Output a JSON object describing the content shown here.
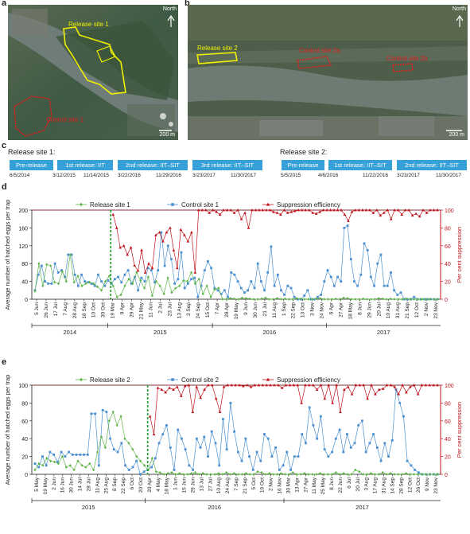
{
  "panel_a": {
    "label": "a",
    "north": "North",
    "site_label": "Release site 1",
    "control_label": "Control site 1",
    "scale": "200 m"
  },
  "panel_b": {
    "label": "b",
    "north": "North",
    "site_label": "Release site 2",
    "control_a": "Control site 2a",
    "control_b": "Control site 2b",
    "scale": "200 m"
  },
  "panel_c": {
    "label": "c",
    "site1": {
      "title": "Release site 1:",
      "boxes": [
        "Pre-release",
        "1st release: IIT",
        "2nd release: IIT–SIT",
        "3rd release: IIT–SIT"
      ],
      "dates": [
        "6/5/2014",
        "3/12/2015",
        "11/14/2015",
        "3/22/2016",
        "11/29/2016",
        "3/23/2017",
        "11/30/2017"
      ]
    },
    "site2": {
      "title": "Release site 2:",
      "boxes": [
        "Pre-release",
        "1st release: IIT–SIT",
        "2nd release: IIT–SIT"
      ],
      "dates": [
        "5/5/2015",
        "4/6/2016",
        "11/22/2016",
        "3/23/2017",
        "11/30/2017"
      ]
    }
  },
  "chart_data": [
    {
      "panel": "d",
      "type": "line",
      "ylabel": "Average number of hatched eggs per trap",
      "y2label": "Per cent suppression",
      "ylim": [
        0,
        200
      ],
      "y2lim": [
        0,
        100
      ],
      "yticks": [
        0,
        40,
        80,
        120,
        160,
        200
      ],
      "y2ticks": [
        0,
        20,
        40,
        60,
        80,
        100
      ],
      "legend": [
        "Release site 1",
        "Control site 1",
        "Suppression efficiency"
      ],
      "colors": {
        "release": "#5fb548",
        "control": "#4a90d0",
        "suppression": "#c0141c",
        "divider": "#1aa02a"
      },
      "xticklabels": [
        "5 Jun",
        "26 Jun",
        "17 Jul",
        "7 Aug",
        "28 Aug",
        "18 Sep",
        "10 Oct",
        "30 Oct",
        "19 Mar",
        "9 Apr",
        "29 Apr",
        "21 May",
        "11 Jun",
        "2 Jul",
        "23 Jul",
        "13 Aug",
        "3 Sep",
        "24 Sep",
        "15 Oct",
        "7 Apr",
        "28 Apr",
        "19 May",
        "9 Jun",
        "30 Jun",
        "21 Jul",
        "11 Aug",
        "1 Sep",
        "22 Sep",
        "13 Oct",
        "3 Nov",
        "24 Nov",
        "6 Apr",
        "27 Apr",
        "18 May",
        "8 Jun",
        "29 Jun",
        "20 Jul",
        "10 Aug",
        "31 Aug",
        "21 Sep",
        "12 Oct",
        "2 Nov",
        "23 Nov"
      ],
      "years": [
        {
          "label": "2014",
          "from": 0,
          "to": 8
        },
        {
          "label": "2015",
          "from": 8,
          "to": 19
        },
        {
          "label": "2016",
          "from": 19,
          "to": 31
        },
        {
          "label": "2017",
          "from": 31,
          "to": 43
        }
      ],
      "divider_at": 7.8,
      "release": [
        18,
        80,
        30,
        78,
        75,
        38,
        35,
        62,
        40,
        100,
        38,
        52,
        30,
        35,
        38,
        35,
        28,
        20,
        40,
        52,
        30,
        5,
        10,
        30,
        45,
        35,
        60,
        42,
        25,
        50,
        8,
        40,
        30,
        12,
        48,
        15,
        25,
        30,
        42,
        40,
        60,
        35,
        45,
        12,
        30,
        5,
        22,
        25,
        0,
        0,
        2,
        1,
        0,
        3,
        2,
        1,
        0,
        0,
        1,
        3,
        0,
        0,
        2,
        0,
        1,
        0,
        0,
        2,
        1,
        0,
        0,
        0,
        1,
        2,
        0,
        0,
        0,
        1,
        0,
        3,
        2,
        0,
        0,
        0,
        1,
        0,
        0,
        0,
        2,
        1,
        0,
        1,
        0,
        0,
        0,
        1,
        0,
        0,
        0,
        0,
        0,
        0,
        0,
        0
      ],
      "control": [
        20,
        55,
        75,
        40,
        35,
        35,
        80,
        60,
        65,
        50,
        100,
        100,
        55,
        30,
        55,
        40,
        38,
        35,
        30,
        55,
        40,
        30,
        42,
        35,
        45,
        50,
        38,
        55,
        65,
        35,
        50,
        20,
        48,
        40,
        70,
        65,
        38,
        65,
        150,
        75,
        120,
        90,
        35,
        45,
        105,
        25,
        35,
        45,
        48,
        5,
        30,
        65,
        85,
        70,
        25,
        20,
        12,
        20,
        5,
        60,
        55,
        40,
        25,
        15,
        20,
        40,
        25,
        80,
        40,
        20,
        60,
        118,
        30,
        55,
        20,
        10,
        30,
        25,
        5,
        0,
        0,
        8,
        20,
        0,
        0,
        5,
        10,
        40,
        65,
        50,
        30,
        50,
        40,
        160,
        165,
        90,
        40,
        30,
        55,
        125,
        110,
        50,
        30,
        80,
        100,
        30,
        30,
        60,
        20,
        10,
        15,
        0,
        0,
        0,
        5,
        0,
        0,
        0,
        0,
        0,
        0,
        0
      ],
      "suppression": [
        95,
        80,
        58,
        60,
        50,
        58,
        38,
        32,
        55,
        30,
        40,
        35,
        72,
        75,
        65,
        75,
        80,
        55,
        35,
        78,
        72,
        65,
        75,
        30,
        100,
        100,
        100,
        97,
        100,
        98,
        95,
        100,
        100,
        100,
        97,
        100,
        90,
        97,
        80,
        100,
        100,
        100,
        100,
        100,
        100,
        98,
        97,
        95,
        100,
        97,
        98,
        99,
        100,
        100,
        100,
        100,
        97,
        96,
        98,
        100,
        100,
        100,
        100,
        100,
        100,
        95,
        88,
        98,
        100,
        100,
        100,
        100,
        100,
        97,
        100,
        94,
        97,
        100,
        90,
        100,
        100,
        95,
        100,
        100,
        94,
        96,
        93,
        100,
        97,
        100,
        100,
        100
      ]
    },
    {
      "panel": "e",
      "type": "line",
      "ylabel": "Average number of hatched eggs per trap",
      "y2label": "Per cent suppression",
      "ylim": [
        0,
        100
      ],
      "y2lim": [
        0,
        100
      ],
      "yticks": [
        0,
        20,
        40,
        60,
        80,
        100
      ],
      "y2ticks": [
        0,
        20,
        40,
        60,
        80,
        100
      ],
      "legend": [
        "Release site 2",
        "Control site 2",
        "Suppression efficiency"
      ],
      "colors": {
        "release": "#5fb548",
        "control": "#4a90d0",
        "suppression": "#c0141c",
        "divider": "#1aa02a"
      },
      "xticklabels": [
        "5 May",
        "19 May",
        "2 Jun",
        "16 Jun",
        "30 Jun",
        "14 Jul",
        "28 Jul",
        "11 Aug",
        "25 Aug",
        "8 Sep",
        "22 Sep",
        "6 Oct",
        "20 Oct",
        "20 Apr",
        "4 May",
        "18 May",
        "1 Jun",
        "15 Jun",
        "29 Jun",
        "13 Jul",
        "27 Jul",
        "10 Aug",
        "24 Aug",
        "7 Sep",
        "21 Sep",
        "5 Oct",
        "19 Oct",
        "2 Nov",
        "16 Nov",
        "30 Mar",
        "13 Apr",
        "27 Apr",
        "11 May",
        "25 May",
        "8 Jun",
        "22 Jun",
        "6 Jul",
        "20 Jul",
        "3 Aug",
        "17 Aug",
        "31 Aug",
        "14 Sep",
        "28 Sep",
        "12 Oct",
        "26 Oct",
        "9 Nov",
        "23 Nov"
      ],
      "years": [
        {
          "label": "2015",
          "from": 0,
          "to": 13
        },
        {
          "label": "2016",
          "from": 13,
          "to": 29
        },
        {
          "label": "2017",
          "from": 29,
          "to": 47
        }
      ],
      "divider_at": 12.8,
      "release": [
        5,
        12,
        10,
        18,
        15,
        14,
        12,
        20,
        8,
        10,
        5,
        15,
        10,
        8,
        12,
        5,
        25,
        42,
        30,
        60,
        70,
        55,
        65,
        40,
        35,
        28,
        20,
        15,
        10,
        5,
        18,
        3,
        2,
        0,
        1,
        2,
        0,
        1,
        0,
        0,
        1,
        2,
        0,
        1,
        0,
        0,
        0,
        1,
        0,
        2,
        0,
        1,
        0,
        0,
        1,
        0,
        0,
        3,
        2,
        0,
        1,
        0,
        0,
        1,
        0,
        0,
        2,
        0,
        0,
        1,
        0,
        0,
        0,
        1,
        0,
        0,
        0,
        2,
        0,
        1,
        0,
        0,
        5,
        3,
        0,
        0,
        1,
        0,
        0,
        2,
        0,
        1,
        0,
        0,
        0,
        1,
        0,
        0,
        0,
        0,
        0,
        0,
        0,
        0
      ],
      "control": [
        12,
        8,
        20,
        10,
        25,
        22,
        14,
        25,
        20,
        25,
        22,
        22,
        22,
        22,
        22,
        68,
        68,
        10,
        72,
        70,
        40,
        28,
        25,
        35,
        10,
        5,
        8,
        15,
        0,
        3,
        5,
        8,
        18,
        35,
        45,
        55,
        30,
        5,
        50,
        40,
        28,
        10,
        5,
        40,
        30,
        42,
        20,
        48,
        35,
        10,
        62,
        28,
        80,
        48,
        25,
        15,
        40,
        20,
        5,
        25,
        15,
        45,
        40,
        20,
        30,
        5,
        10,
        25,
        5,
        20,
        20,
        45,
        35,
        75,
        55,
        40,
        65,
        28,
        20,
        25,
        40,
        50,
        25,
        45,
        30,
        35,
        55,
        60,
        25,
        35,
        45,
        30,
        15,
        35,
        20,
        38,
        95,
        80,
        65,
        15,
        10,
        5,
        2,
        0,
        0,
        0,
        0,
        0
      ],
      "suppression": [
        65,
        45,
        97,
        95,
        92,
        97,
        95,
        98,
        88,
        99,
        100,
        70,
        98,
        86,
        95,
        100,
        100,
        85,
        70,
        98,
        100,
        100,
        100,
        100,
        99,
        100,
        98,
        100,
        100,
        100,
        100,
        100,
        100,
        100,
        97,
        100,
        100,
        100,
        100,
        80,
        100,
        100,
        100,
        95,
        100,
        85,
        100,
        80,
        100,
        70,
        95,
        98,
        90,
        100,
        100,
        100,
        85,
        100,
        90,
        95,
        96,
        100,
        100,
        98,
        90,
        100,
        92,
        98,
        100,
        90,
        100,
        100,
        100,
        100,
        100
      ]
    }
  ]
}
